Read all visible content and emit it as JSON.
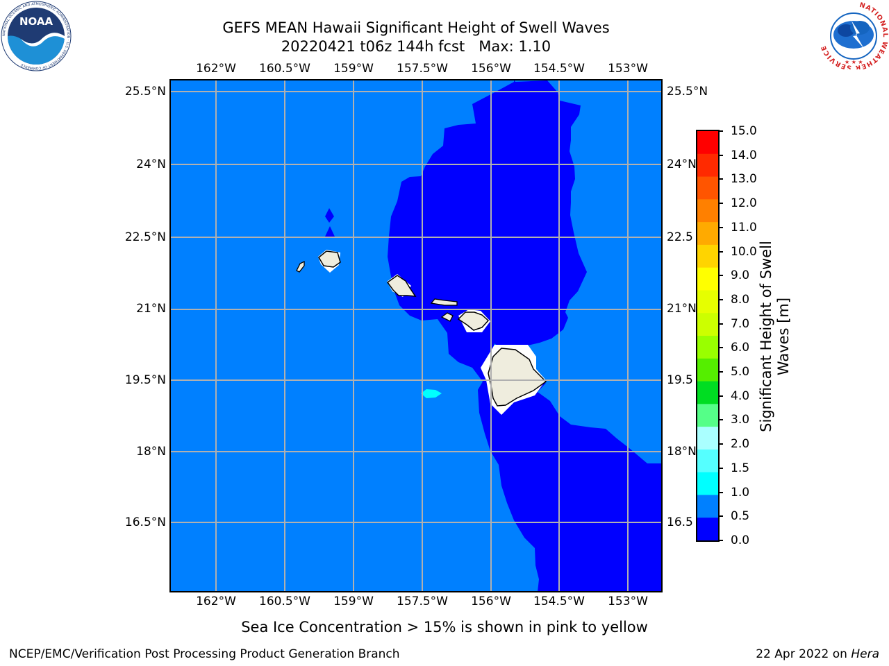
{
  "title": {
    "line1": "GEFS MEAN Hawaii Significant Height of Swell Waves",
    "line2": "20220421 t06z 144h fcst   Max: 1.10"
  },
  "map": {
    "lon_labels": [
      "162°W",
      "160.5°W",
      "159°W",
      "157.5°W",
      "156°W",
      "154.5°W",
      "153°W"
    ],
    "lat_labels": [
      "25.5°N",
      "24°N",
      "22.5°N",
      "21°N",
      "19.5°N",
      "18°N",
      "16.5°N"
    ],
    "right_lat_labels": [
      "25.5°N",
      "24°N",
      "22.5",
      "21°N",
      "19.5",
      "18°N",
      "16.5"
    ]
  },
  "colorbar": {
    "title_line1": "Significant Height of Swell",
    "title_line2": "Waves [m]",
    "ticks": [
      "15.0",
      "14.0",
      "13.0",
      "12.0",
      "11.0",
      "10.0",
      "9.0",
      "8.0",
      "7.0",
      "6.0",
      "5.0",
      "4.0",
      "3.0",
      "2.0",
      "1.5",
      "1.0",
      "0.5",
      "0.0"
    ],
    "colors": [
      "#ff0000",
      "#ff2a00",
      "#ff5500",
      "#ff8000",
      "#ffaa00",
      "#ffd400",
      "#ffff00",
      "#e6ff00",
      "#ccff00",
      "#99ff00",
      "#55ee00",
      "#00dd22",
      "#55ff88",
      "#aaffff",
      "#55ffff",
      "#00ffff",
      "#0080ff",
      "#0000ff"
    ]
  },
  "logos": {
    "noaa_text": "NOAA",
    "noaa_ring_text": "NATIONAL OCEANIC AND ATMOSPHERIC ADMINISTRATION · U.S. DEPARTMENT OF COMMERCE",
    "nws_ring_text": "NATIONAL WEATHER SERVICE"
  },
  "caption": "Sea Ice Concentration > 15% is shown in pink to yellow",
  "footer": {
    "left": "NCEP/EMC/Verification Post Processing Product Generation Branch",
    "right_prefix": "22 Apr 2022 on ",
    "right_host": "Hera"
  }
}
